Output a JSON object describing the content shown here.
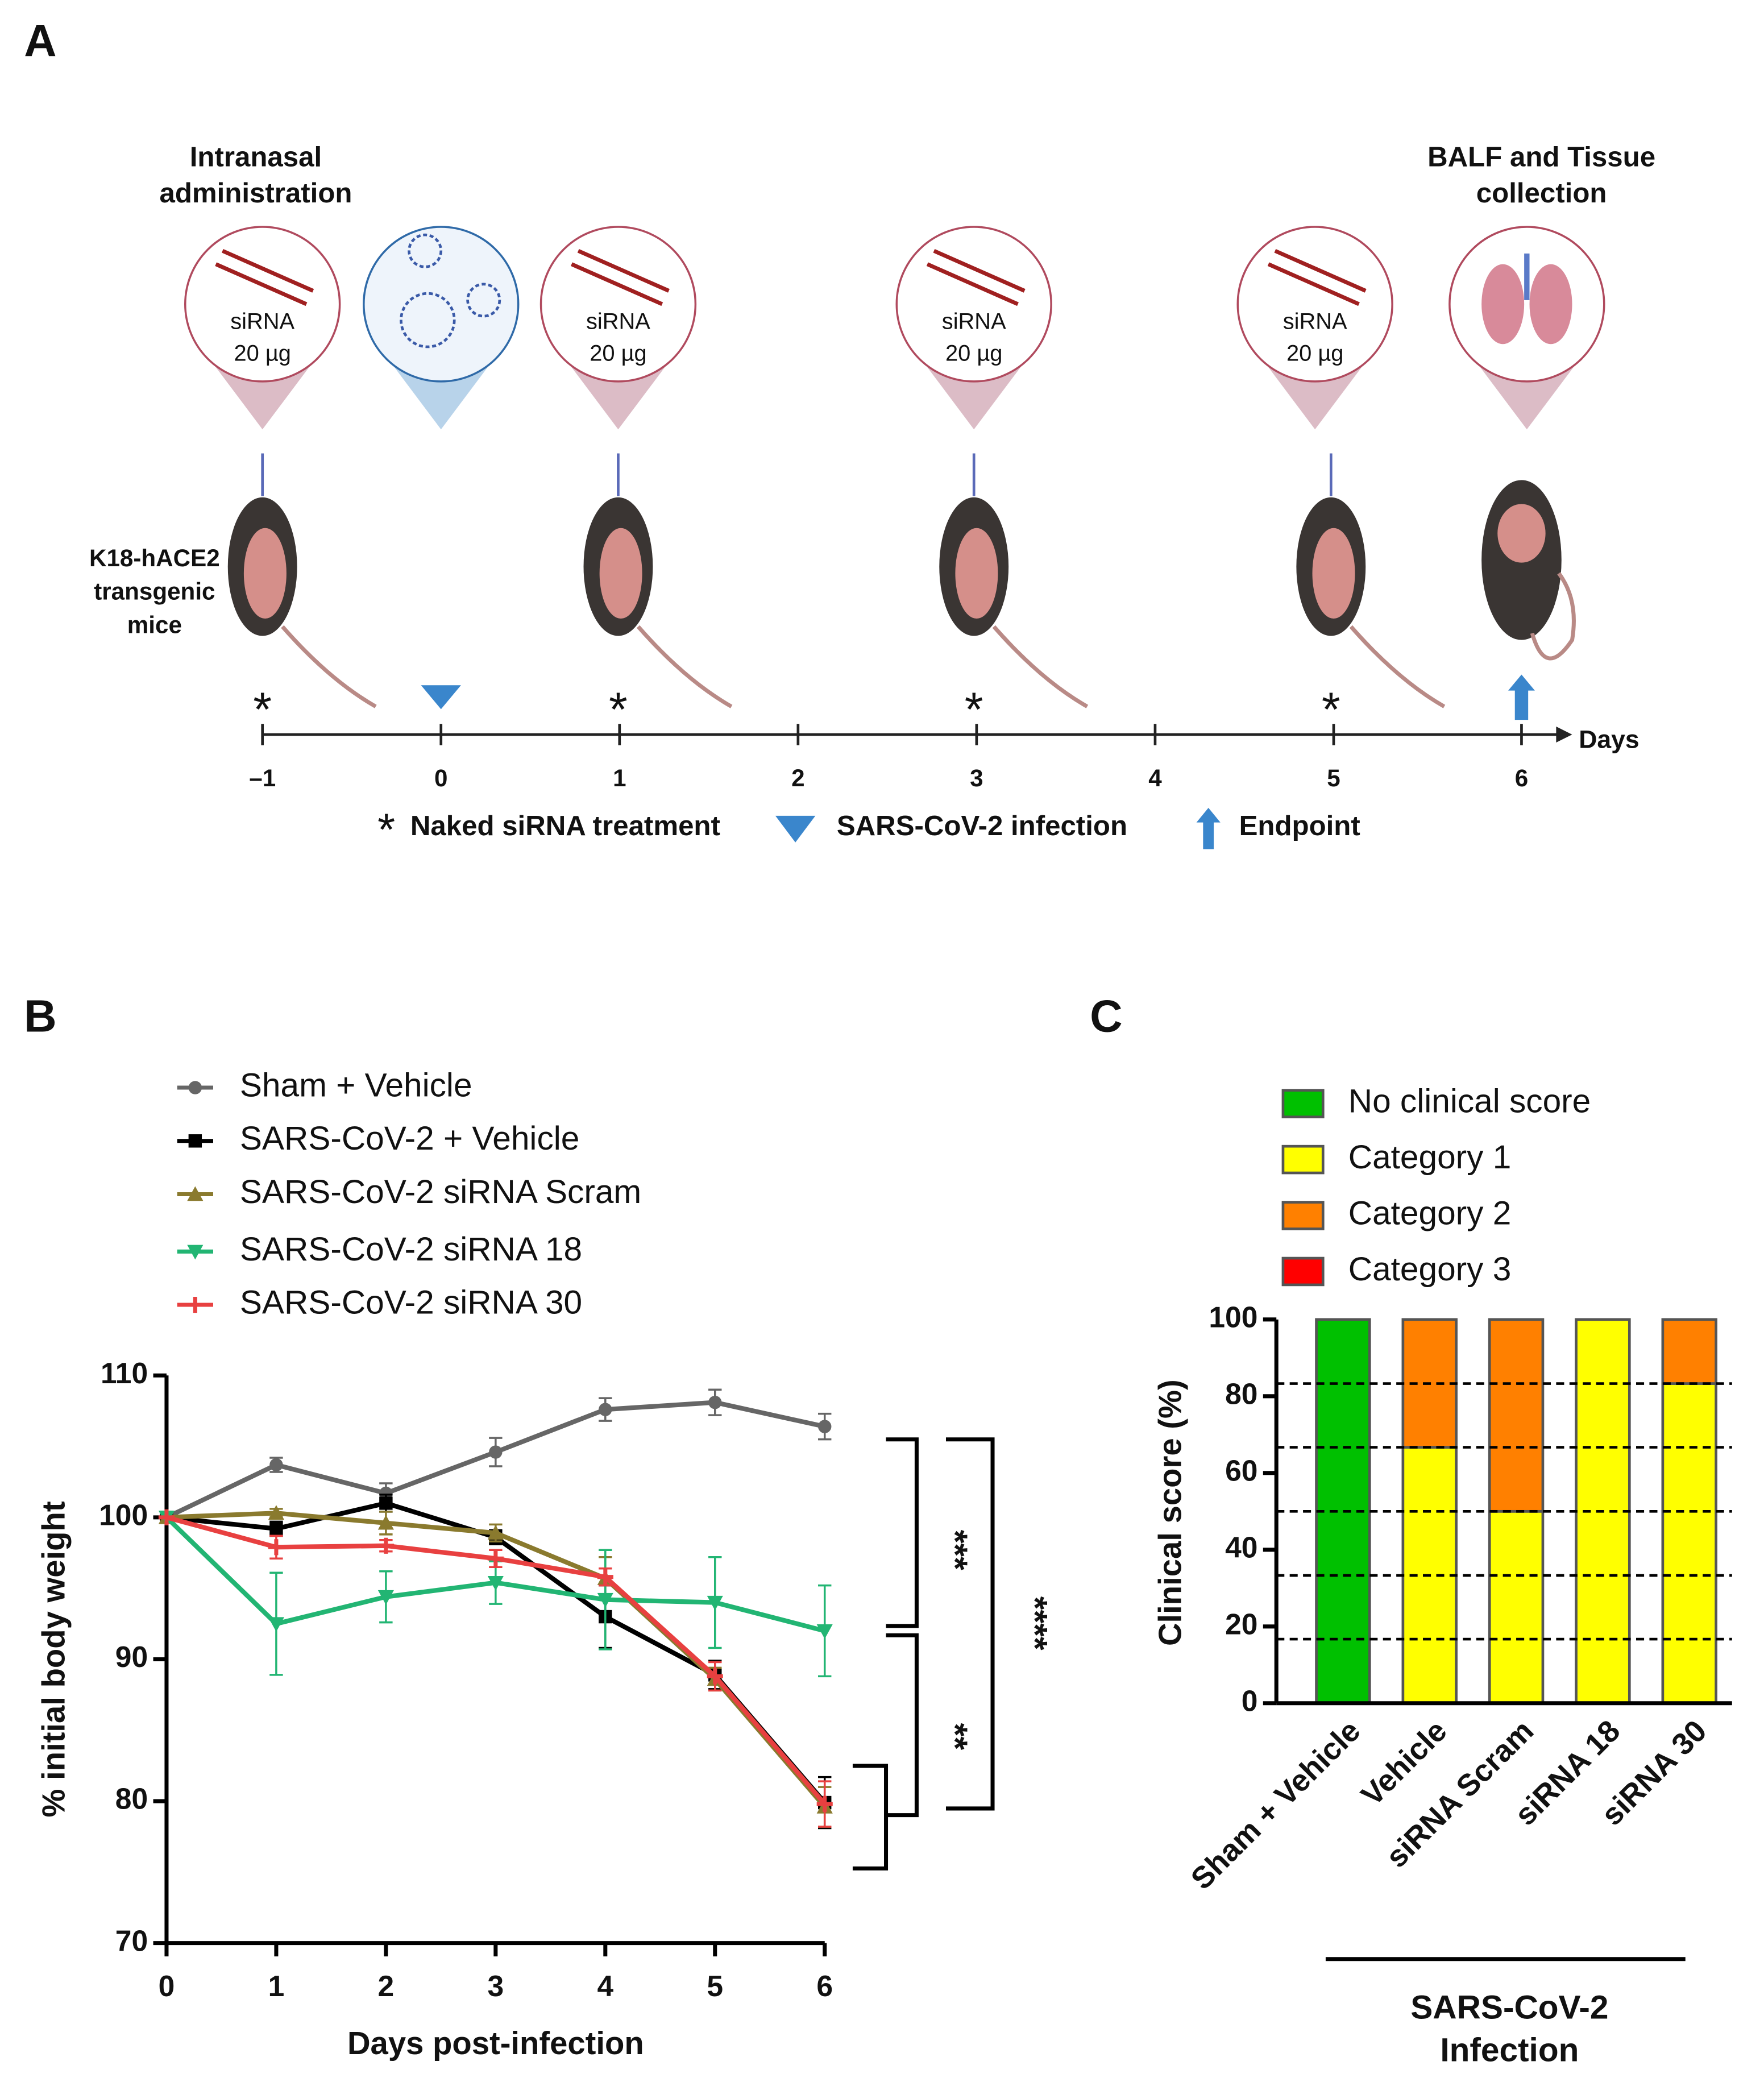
{
  "panel_labels": [
    "A",
    "B",
    "C"
  ],
  "diagram": {
    "start_label": [
      "Intranasal",
      "administration"
    ],
    "end_label": [
      "BALF and Tissue",
      "collection"
    ],
    "mice_label": [
      "K18-hACE2",
      "transgenic",
      "mice"
    ],
    "dose_label": [
      "siRNA",
      "20 µg"
    ],
    "day_labels": [
      "–1",
      "0",
      "1",
      "2",
      "3",
      "4",
      "5",
      "6"
    ],
    "axis_label": "Days",
    "legend": [
      "Naked siRNA treatment",
      "SARS-CoV-2 infection",
      "Endpoint"
    ]
  },
  "chart_data": [
    {
      "type": "line",
      "x": [
        0,
        1,
        2,
        3,
        4,
        5,
        6
      ],
      "xlim": [
        0,
        6
      ],
      "xticks": [
        0,
        1,
        2,
        3,
        4,
        5,
        6
      ],
      "ylim": [
        70,
        110
      ],
      "yticks": [
        70,
        80,
        90,
        100,
        110
      ],
      "xlabel": "Days post-infection",
      "ylabel": "% initial body weight",
      "series": [
        {
          "name": "Sham + Vehicle",
          "color": "#666666",
          "marker": "circle",
          "values": [
            100,
            103.7,
            101.7,
            104.6,
            107.6,
            108.1,
            106.4
          ],
          "errors": [
            0,
            0.5,
            0.7,
            1.0,
            0.8,
            0.9,
            0.9
          ]
        },
        {
          "name": "SARS-CoV-2 + Vehicle",
          "color": "#000000",
          "marker": "square",
          "values": [
            100,
            99.2,
            101,
            98.6,
            93,
            88.9,
            79.9
          ],
          "errors": [
            0,
            0.5,
            0.6,
            0.5,
            2.2,
            1.0,
            1.8
          ]
        },
        {
          "name": "SARS-CoV-2 siRNA Scram",
          "color": "#8a7a2e",
          "marker": "triangle-up",
          "values": [
            100,
            100.3,
            99.6,
            98.9,
            95.7,
            88.6,
            79.6
          ],
          "errors": [
            0,
            0.3,
            0.8,
            0.6,
            1.5,
            0.8,
            1.4
          ]
        },
        {
          "name": "SARS-CoV-2 siRNA 18",
          "color": "#22b573",
          "marker": "triangle-down",
          "values": [
            100,
            92.5,
            94.4,
            95.4,
            94.2,
            94,
            92
          ],
          "errors": [
            0,
            3.6,
            1.8,
            1.5,
            3.5,
            3.2,
            3.2
          ]
        },
        {
          "name": "SARS-CoV-2 siRNA 30",
          "color": "#e84040",
          "marker": "plus",
          "values": [
            100,
            97.9,
            98,
            97.1,
            95.8,
            88.8,
            79.8
          ],
          "errors": [
            0,
            0.8,
            0.4,
            0.6,
            0.6,
            1.0,
            1.6
          ]
        }
      ],
      "annotations": [
        "***",
        "**",
        "****"
      ]
    },
    {
      "type": "stacked_bar",
      "categories": [
        "Sham + Vehicle",
        "Vehicle",
        "siRNA Scram",
        "siRNA 18",
        "siRNA 30"
      ],
      "ylim": [
        0,
        100
      ],
      "yticks": [
        0,
        20,
        40,
        60,
        80,
        100
      ],
      "ylabel": "Clinical score (%)",
      "hlines": [
        16.7,
        33.3,
        50,
        66.7,
        83.3
      ],
      "group_label": [
        "SARS-CoV-2",
        "Infection"
      ],
      "series": [
        {
          "name": "No clinical score",
          "color": "#00c000",
          "values": [
            100,
            0,
            0,
            0,
            0
          ]
        },
        {
          "name": "Category 1",
          "color": "#ffff00",
          "values": [
            0,
            66.7,
            50,
            100,
            83.3
          ]
        },
        {
          "name": "Category 2",
          "color": "#ff8000",
          "values": [
            0,
            33.3,
            50,
            0,
            16.7
          ]
        },
        {
          "name": "Category 3",
          "color": "#ff0000",
          "values": [
            0,
            0,
            0,
            0,
            0
          ]
        }
      ]
    }
  ]
}
